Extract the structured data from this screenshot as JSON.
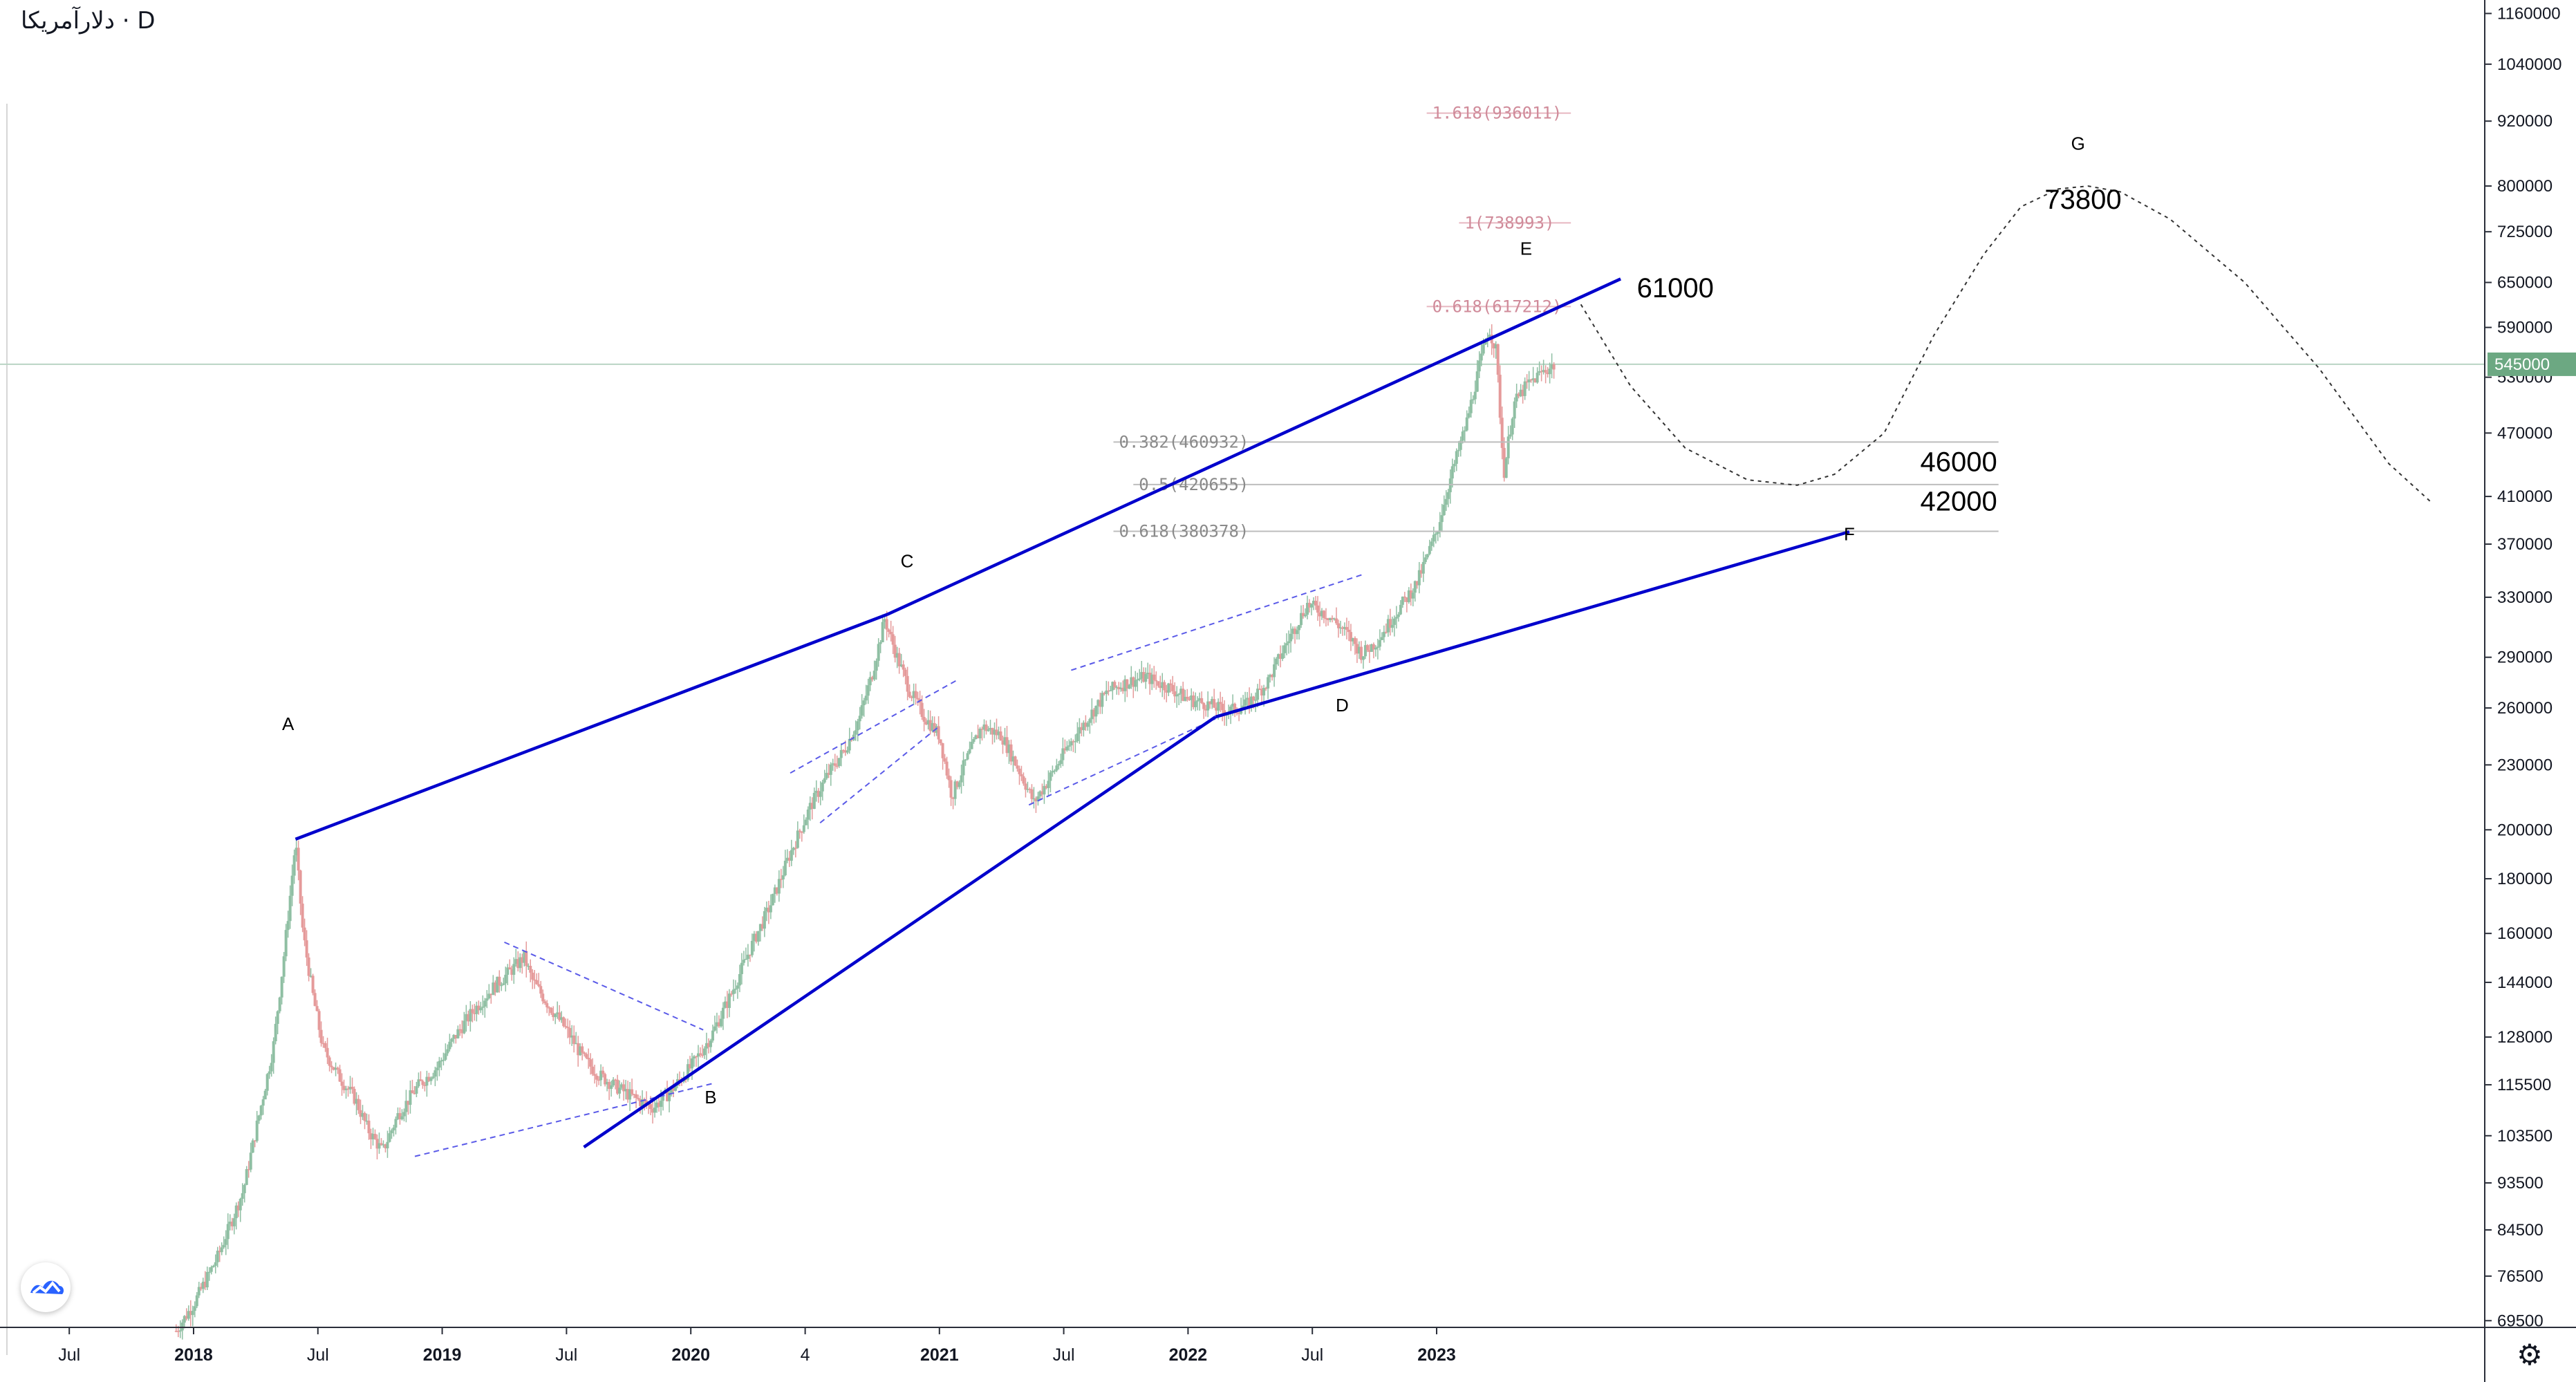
{
  "header": {
    "symbol": "دلارآمریکا",
    "separator": "·",
    "interval": "D"
  },
  "price_axis": {
    "ticks": [
      "1160000",
      "1040000",
      "920000",
      "800000",
      "725000",
      "650000",
      "590000",
      "530000",
      "470000",
      "410000",
      "370000",
      "330000",
      "290000",
      "260000",
      "230000",
      "200000",
      "180000",
      "160000",
      "144000",
      "128000",
      "115500",
      "103500",
      "93500",
      "84500",
      "76500",
      "69500"
    ],
    "current_price": "545000",
    "current_color": "#6ca882"
  },
  "time_axis": {
    "labels": [
      {
        "text": "Jul",
        "bold": false
      },
      {
        "text": "2018",
        "bold": true
      },
      {
        "text": "Jul",
        "bold": false
      },
      {
        "text": "2019",
        "bold": true
      },
      {
        "text": "Jul",
        "bold": false
      },
      {
        "text": "2020",
        "bold": true
      },
      {
        "text": "4",
        "bold": false
      },
      {
        "text": "2021",
        "bold": true
      },
      {
        "text": "Jul",
        "bold": false
      },
      {
        "text": "2022",
        "bold": true
      },
      {
        "text": "Jul",
        "bold": false
      },
      {
        "text": "2023",
        "bold": true
      }
    ]
  },
  "chart_data": {
    "type": "candlestick",
    "scale": "log",
    "ylim": [
      66000,
      1180000
    ],
    "series": [
      {
        "points": [
          [
            2017.93,
            68000
          ],
          [
            2018.0,
            72000
          ],
          [
            2018.1,
            80000
          ],
          [
            2018.2,
            92000
          ],
          [
            2018.27,
            110000
          ],
          [
            2018.32,
            125000
          ],
          [
            2018.36,
            150000
          ],
          [
            2018.39,
            175000
          ],
          [
            2018.41,
            195000
          ],
          [
            2018.44,
            160000
          ],
          [
            2018.48,
            140000
          ],
          [
            2018.52,
            125000
          ],
          [
            2018.58,
            118000
          ],
          [
            2018.65,
            112000
          ],
          [
            2018.7,
            105000
          ],
          [
            2018.76,
            100000
          ],
          [
            2018.82,
            108000
          ],
          [
            2018.9,
            115000
          ],
          [
            2018.98,
            120000
          ],
          [
            2019.05,
            128000
          ],
          [
            2019.12,
            135000
          ],
          [
            2019.2,
            142000
          ],
          [
            2019.28,
            148000
          ],
          [
            2019.33,
            152000
          ],
          [
            2019.36,
            145000
          ],
          [
            2019.42,
            138000
          ],
          [
            2019.5,
            130000
          ],
          [
            2019.57,
            122000
          ],
          [
            2019.63,
            118000
          ],
          [
            2019.7,
            115000
          ],
          [
            2019.78,
            112000
          ],
          [
            2019.85,
            110000
          ],
          [
            2019.92,
            114000
          ],
          [
            2020.0,
            120000
          ],
          [
            2020.08,
            128000
          ],
          [
            2020.16,
            140000
          ],
          [
            2020.24,
            155000
          ],
          [
            2020.32,
            170000
          ],
          [
            2020.4,
            190000
          ],
          [
            2020.48,
            210000
          ],
          [
            2020.55,
            225000
          ],
          [
            2020.62,
            238000
          ],
          [
            2020.68,
            255000
          ],
          [
            2020.73,
            280000
          ],
          [
            2020.78,
            315000
          ],
          [
            2020.83,
            290000
          ],
          [
            2020.88,
            270000
          ],
          [
            2020.94,
            255000
          ],
          [
            2021.0,
            245000
          ],
          [
            2021.05,
            215000
          ],
          [
            2021.1,
            230000
          ],
          [
            2021.17,
            250000
          ],
          [
            2021.25,
            245000
          ],
          [
            2021.33,
            225000
          ],
          [
            2021.38,
            212000
          ],
          [
            2021.45,
            225000
          ],
          [
            2021.52,
            240000
          ],
          [
            2021.6,
            255000
          ],
          [
            2021.68,
            270000
          ],
          [
            2021.76,
            275000
          ],
          [
            2021.83,
            278000
          ],
          [
            2021.92,
            272000
          ],
          [
            2022.0,
            265000
          ],
          [
            2022.08,
            262000
          ],
          [
            2022.16,
            258000
          ],
          [
            2022.24,
            262000
          ],
          [
            2022.32,
            275000
          ],
          [
            2022.4,
            300000
          ],
          [
            2022.48,
            325000
          ],
          [
            2022.56,
            318000
          ],
          [
            2022.64,
            305000
          ],
          [
            2022.7,
            292000
          ],
          [
            2022.76,
            300000
          ],
          [
            2022.84,
            320000
          ],
          [
            2022.92,
            340000
          ],
          [
            2023.0,
            380000
          ],
          [
            2023.06,
            430000
          ],
          [
            2023.12,
            480000
          ],
          [
            2023.17,
            540000
          ],
          [
            2023.21,
            590000
          ],
          [
            2023.24,
            560000
          ],
          [
            2023.27,
            430000
          ],
          [
            2023.31,
            500000
          ],
          [
            2023.36,
            520000
          ],
          [
            2023.42,
            535000
          ],
          [
            2023.48,
            545000
          ]
        ]
      }
    ],
    "channel_lines": [
      {
        "from": [
          2018.41,
          196000
        ],
        "to": [
          2020.79,
          318000
        ]
      },
      {
        "from": [
          2020.79,
          318000
        ],
        "to": [
          2023.74,
          655000
        ]
      },
      {
        "from": [
          2019.57,
          101000
        ],
        "to": [
          2022.11,
          255000
        ]
      },
      {
        "from": [
          2022.11,
          255000
        ],
        "to": [
          2024.66,
          380000
        ]
      }
    ],
    "channel_color": "#0000cc",
    "triangle_lines": [
      {
        "from": [
          2018.89,
          99000
        ],
        "to": [
          2020.1,
          116000
        ]
      },
      {
        "from": [
          2019.25,
          157000
        ],
        "to": [
          2020.05,
          130000
        ]
      },
      {
        "from": [
          2020.4,
          226000
        ],
        "to": [
          2021.07,
          276000
        ]
      },
      {
        "from": [
          2020.52,
          203000
        ],
        "to": [
          2021.0,
          250000
        ]
      },
      {
        "from": [
          2021.36,
          211000
        ],
        "to": [
          2022.11,
          254000
        ]
      },
      {
        "from": [
          2021.53,
          282000
        ],
        "to": [
          2022.71,
          347000
        ]
      }
    ],
    "triangle_color": "#5a5ae8",
    "fib_levels": [
      {
        "ratio": "1.618(936011)",
        "value": 936011,
        "from": 2022.96,
        "to": 2023.54,
        "color": "#d08b9a"
      },
      {
        "ratio": "1(738993)",
        "value": 738993,
        "from": 2023.09,
        "to": 2023.54,
        "color": "#d08b9a"
      },
      {
        "ratio": "0.618(617212)",
        "value": 617212,
        "from": 2022.96,
        "to": 2023.54,
        "color": "#d08b9a"
      },
      {
        "ratio": "0.382(460932)",
        "value": 460932,
        "from": 2021.7,
        "to": 2025.26,
        "color": "#8a8a8a"
      },
      {
        "ratio": "0.5(420655)",
        "value": 420655,
        "from": 2021.78,
        "to": 2025.26,
        "color": "#8a8a8a"
      },
      {
        "ratio": "0.618(380378)",
        "value": 380378,
        "from": 2021.7,
        "to": 2025.26,
        "color": "#8a8a8a"
      }
    ],
    "projection": [
      [
        2023.58,
        620000
      ],
      [
        2023.78,
        520000
      ],
      [
        2024.0,
        455000
      ],
      [
        2024.25,
        425000
      ],
      [
        2024.45,
        420000
      ],
      [
        2024.6,
        430000
      ],
      [
        2024.8,
        470000
      ],
      [
        2025.0,
        580000
      ],
      [
        2025.2,
        690000
      ],
      [
        2025.35,
        765000
      ],
      [
        2025.5,
        795000
      ],
      [
        2025.62,
        800000
      ],
      [
        2025.75,
        790000
      ],
      [
        2025.95,
        745000
      ],
      [
        2026.25,
        650000
      ],
      [
        2026.55,
        540000
      ],
      [
        2026.83,
        440000
      ],
      [
        2027.0,
        405000
      ]
    ],
    "wave_labels": [
      {
        "text": "A",
        "x": 2018.38,
        "y": 248000
      },
      {
        "text": "B",
        "x": 2020.08,
        "y": 111000
      },
      {
        "text": "C",
        "x": 2020.87,
        "y": 352000
      },
      {
        "text": "D",
        "x": 2022.62,
        "y": 258000
      },
      {
        "text": "E",
        "x": 2023.36,
        "y": 690000
      },
      {
        "text": "F",
        "x": 2024.66,
        "y": 373000
      },
      {
        "text": "G",
        "x": 2025.58,
        "y": 865000
      }
    ],
    "annotations": [
      {
        "text": "61000",
        "x": 2023.96,
        "y": 643000
      },
      {
        "text": "73800",
        "x": 2025.6,
        "y": 778000
      },
      {
        "text": "46000",
        "x": 2025.1,
        "y": 442000
      },
      {
        "text": "42000",
        "x": 2025.1,
        "y": 406000
      }
    ]
  },
  "icons": {
    "settings": "gear-icon",
    "brand": "tradingview-logo-icon"
  }
}
